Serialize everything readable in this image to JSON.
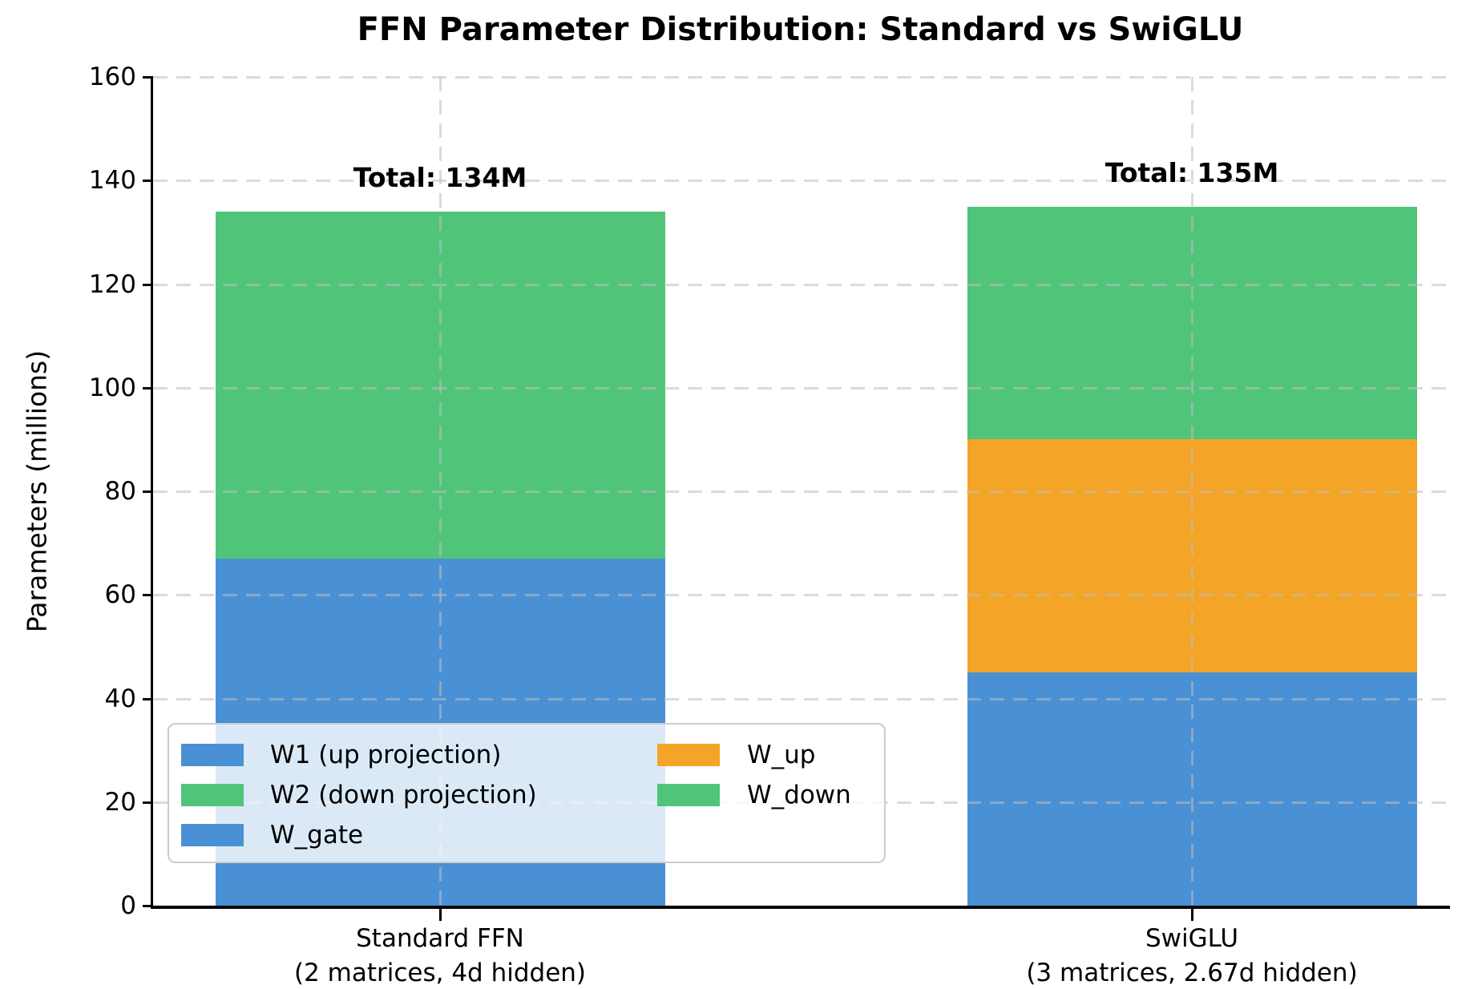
{
  "chart_data": {
    "type": "bar",
    "stacked": true,
    "title": "FFN Parameter Distribution: Standard vs SwiGLU",
    "ylabel": "Parameters (millions)",
    "xlabel": "",
    "ylim": [
      0,
      160
    ],
    "yticks": [
      0,
      20,
      40,
      60,
      80,
      100,
      120,
      140,
      160
    ],
    "grid": "dashed light-gray horizontal and vertical gridlines drawn over bars",
    "legend_position": "lower left",
    "palette": {
      "blue": "#4A90D5",
      "green": "#50C579",
      "orange": "#F4A427"
    },
    "bars": [
      {
        "category_lines": [
          "Standard FFN",
          "(2 matrices, 4d hidden)"
        ],
        "total": 134,
        "total_label": "Total: 134M",
        "segments": [
          {
            "name": "W1 (up projection)",
            "value": 67,
            "color": "blue"
          },
          {
            "name": "W2 (down projection)",
            "value": 67,
            "color": "green"
          }
        ]
      },
      {
        "category_lines": [
          "SwiGLU",
          "(3 matrices, 2.67d hidden)"
        ],
        "total": 135,
        "total_label": "Total: 135M",
        "segments": [
          {
            "name": "W_gate",
            "value": 45,
            "color": "blue"
          },
          {
            "name": "W_up",
            "value": 45,
            "color": "orange"
          },
          {
            "name": "W_down",
            "value": 45,
            "color": "green"
          }
        ]
      }
    ],
    "legend": {
      "columns": [
        [
          {
            "label": "W1 (up projection)",
            "color": "blue"
          },
          {
            "label": "W2 (down projection)",
            "color": "green"
          },
          {
            "label": "W_gate",
            "color": "blue"
          }
        ],
        [
          {
            "label": "W_up",
            "color": "orange"
          },
          {
            "label": "W_down",
            "color": "green"
          }
        ]
      ]
    }
  }
}
